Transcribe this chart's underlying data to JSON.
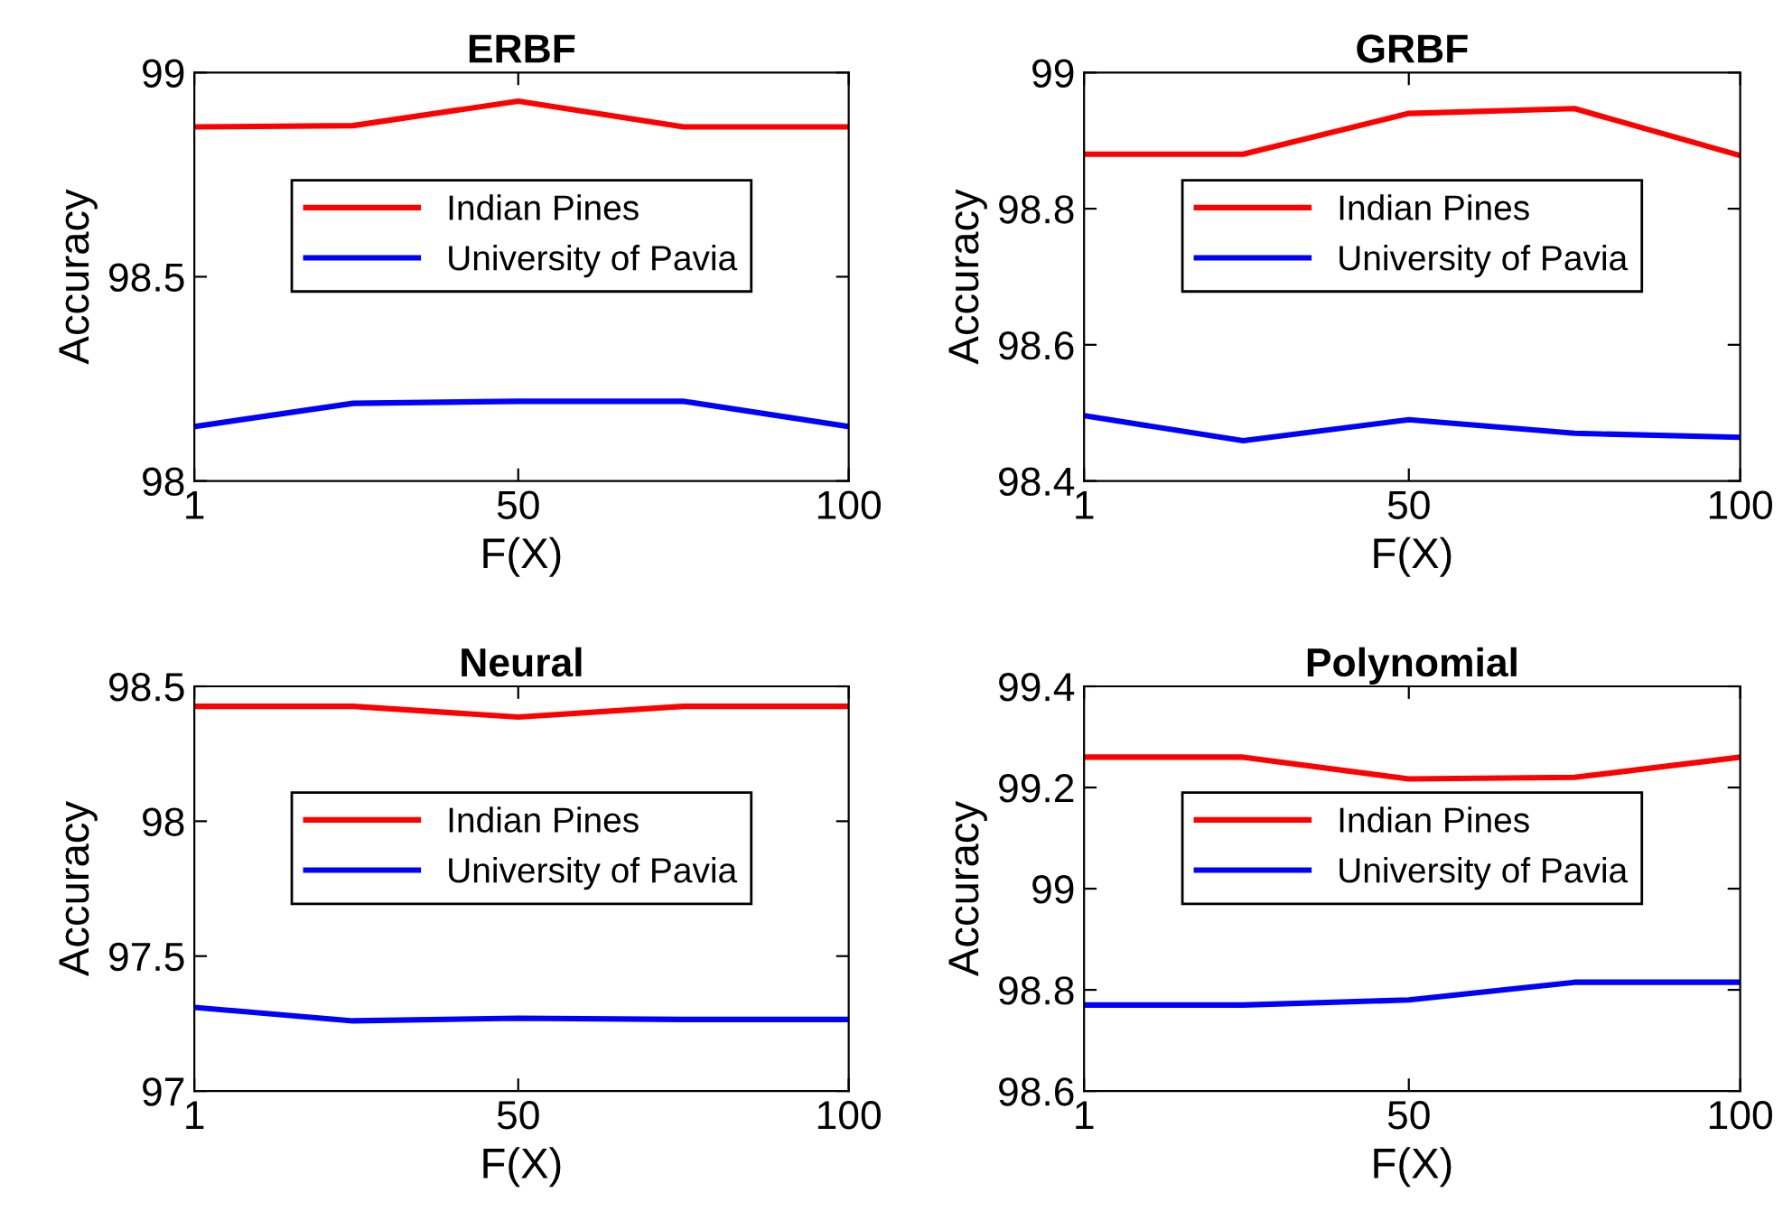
{
  "chart_data": [
    {
      "type": "line",
      "title": "ERBF",
      "xlabel": "F(X)",
      "ylabel": "Accuracy",
      "x": [
        1,
        25,
        50,
        75,
        100
      ],
      "xlim": [
        1,
        100
      ],
      "xticks": [
        1,
        50,
        100
      ],
      "ylim": [
        98,
        99
      ],
      "yticks": [
        98,
        98.5,
        99
      ],
      "legend": "center",
      "grid": false,
      "series": [
        {
          "name": "Indian Pines",
          "color": "#ff0000",
          "values": [
            98.867,
            98.87,
            98.93,
            98.867,
            98.867
          ]
        },
        {
          "name": "University of Pavia",
          "color": "#0000ff",
          "values": [
            98.133,
            98.19,
            98.195,
            98.195,
            98.133
          ]
        }
      ]
    },
    {
      "type": "line",
      "title": "GRBF",
      "xlabel": "F(X)",
      "ylabel": "Accuracy",
      "x": [
        1,
        25,
        50,
        75,
        100
      ],
      "xlim": [
        1,
        100
      ],
      "xticks": [
        1,
        50,
        100
      ],
      "ylim": [
        98.4,
        99
      ],
      "yticks": [
        98.4,
        98.6,
        98.8,
        99
      ],
      "legend": "center",
      "grid": false,
      "series": [
        {
          "name": "Indian Pines",
          "color": "#ff0000",
          "values": [
            98.88,
            98.88,
            98.94,
            98.947,
            98.878
          ]
        },
        {
          "name": "University of Pavia",
          "color": "#0000ff",
          "values": [
            98.496,
            98.459,
            98.49,
            98.47,
            98.464
          ]
        }
      ]
    },
    {
      "type": "line",
      "title": "Neural",
      "xlabel": "F(X)",
      "ylabel": "Accuracy",
      "x": [
        1,
        25,
        50,
        75,
        100
      ],
      "xlim": [
        1,
        100
      ],
      "xticks": [
        1,
        50,
        100
      ],
      "ylim": [
        97,
        98.5
      ],
      "yticks": [
        97,
        97.5,
        98,
        98.5
      ],
      "legend": "center",
      "grid": false,
      "series": [
        {
          "name": "Indian Pines",
          "color": "#ff0000",
          "values": [
            98.426,
            98.426,
            98.386,
            98.426,
            98.426
          ]
        },
        {
          "name": "University of Pavia",
          "color": "#0000ff",
          "values": [
            97.31,
            97.26,
            97.27,
            97.265,
            97.265
          ]
        }
      ]
    },
    {
      "type": "line",
      "title": "Polynomial",
      "xlabel": "F(X)",
      "ylabel": "Accuracy",
      "x": [
        1,
        25,
        50,
        75,
        100
      ],
      "xlim": [
        1,
        100
      ],
      "xticks": [
        1,
        50,
        100
      ],
      "ylim": [
        98.6,
        99.4
      ],
      "yticks": [
        98.6,
        98.8,
        99,
        99.2,
        99.4
      ],
      "legend": "center",
      "grid": false,
      "series": [
        {
          "name": "Indian Pines",
          "color": "#ff0000",
          "values": [
            99.26,
            99.26,
            99.217,
            99.22,
            99.26
          ]
        },
        {
          "name": "University of Pavia",
          "color": "#0000ff",
          "values": [
            98.77,
            98.77,
            98.78,
            98.815,
            98.815
          ]
        }
      ]
    }
  ]
}
